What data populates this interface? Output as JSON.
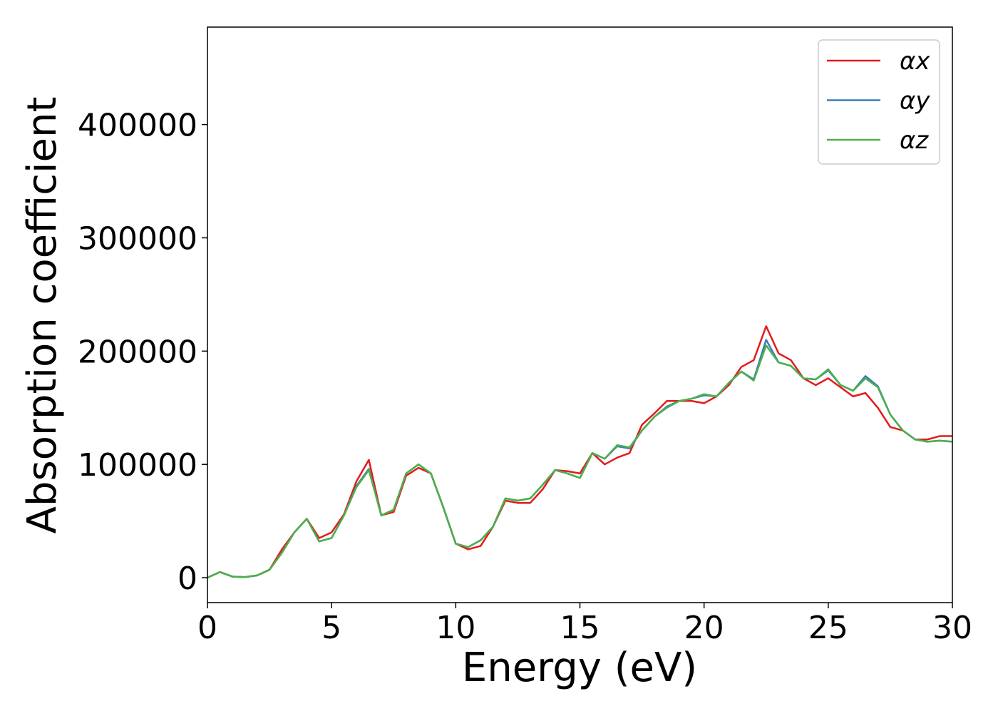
{
  "chart_data": {
    "type": "line",
    "xlabel": "Energy (eV)",
    "ylabel": "Absorption coefficient",
    "x": [
      0,
      0.5,
      1,
      1.5,
      2,
      2.5,
      3,
      3.5,
      4,
      4.5,
      5,
      5.5,
      6,
      6.5,
      7,
      7.5,
      8,
      8.5,
      9,
      9.5,
      10,
      10.5,
      11,
      11.5,
      12,
      12.5,
      13,
      13.5,
      14,
      14.5,
      15,
      15.5,
      16,
      16.5,
      17,
      17.5,
      18,
      18.5,
      19,
      19.5,
      20,
      20.5,
      21,
      21.5,
      22,
      22.5,
      23,
      23.5,
      24,
      24.5,
      25,
      25.5,
      26,
      26.5,
      27,
      27.5,
      28,
      28.5,
      29,
      29.5,
      30
    ],
    "series": [
      {
        "name": "αx",
        "color": "#e41a1c",
        "values": [
          0,
          5000,
          1000,
          500,
          2000,
          7000,
          25000,
          40000,
          52000,
          35000,
          40000,
          56000,
          85000,
          104000,
          55000,
          58000,
          90000,
          97000,
          92000,
          62000,
          30000,
          25000,
          28000,
          45000,
          68000,
          66000,
          66000,
          78000,
          95000,
          94000,
          92000,
          110000,
          100000,
          106000,
          110000,
          135000,
          145000,
          156000,
          156000,
          156000,
          154000,
          160000,
          170000,
          186000,
          192000,
          222000,
          198000,
          192000,
          176000,
          170000,
          176000,
          168000,
          160000,
          163000,
          150000,
          133000,
          130000,
          122000,
          122000,
          125000,
          125000
        ]
      },
      {
        "name": "αy",
        "color": "#377eb8",
        "values": [
          0,
          5000,
          1000,
          500,
          2000,
          7000,
          22000,
          40000,
          52000,
          32000,
          35000,
          55000,
          81000,
          96000,
          55000,
          60000,
          92000,
          100000,
          92000,
          62000,
          30000,
          27000,
          33000,
          45000,
          70000,
          68000,
          70000,
          82000,
          95000,
          92000,
          88000,
          110000,
          105000,
          116000,
          114000,
          130000,
          142000,
          151000,
          156000,
          158000,
          161000,
          160000,
          172000,
          182000,
          175000,
          210000,
          190000,
          187000,
          176000,
          175000,
          183000,
          170000,
          165000,
          178000,
          169000,
          144000,
          130000,
          122000,
          120000,
          121000,
          120000
        ]
      },
      {
        "name": "αz",
        "color": "#4daf4a",
        "values": [
          0,
          5000,
          1000,
          500,
          2000,
          7000,
          22000,
          40000,
          52000,
          32000,
          35000,
          55000,
          80000,
          95000,
          55000,
          60000,
          92000,
          100000,
          92000,
          62000,
          30000,
          27000,
          33000,
          45000,
          70000,
          68000,
          70000,
          82000,
          95000,
          92000,
          88000,
          110000,
          105000,
          117000,
          115000,
          130000,
          142000,
          150000,
          156000,
          158000,
          162000,
          160000,
          172000,
          182000,
          174000,
          205000,
          190000,
          187000,
          176000,
          175000,
          184000,
          170000,
          165000,
          176000,
          168000,
          144000,
          130000,
          122000,
          120000,
          121000,
          120000
        ]
      }
    ],
    "xlim": [
      0,
      30
    ],
    "xticks": [
      0,
      5,
      10,
      15,
      20,
      25,
      30
    ],
    "ylim": [
      -22000,
      486000
    ],
    "yticks": [
      0,
      100000,
      200000,
      300000,
      400000
    ],
    "legend": "upper right"
  }
}
